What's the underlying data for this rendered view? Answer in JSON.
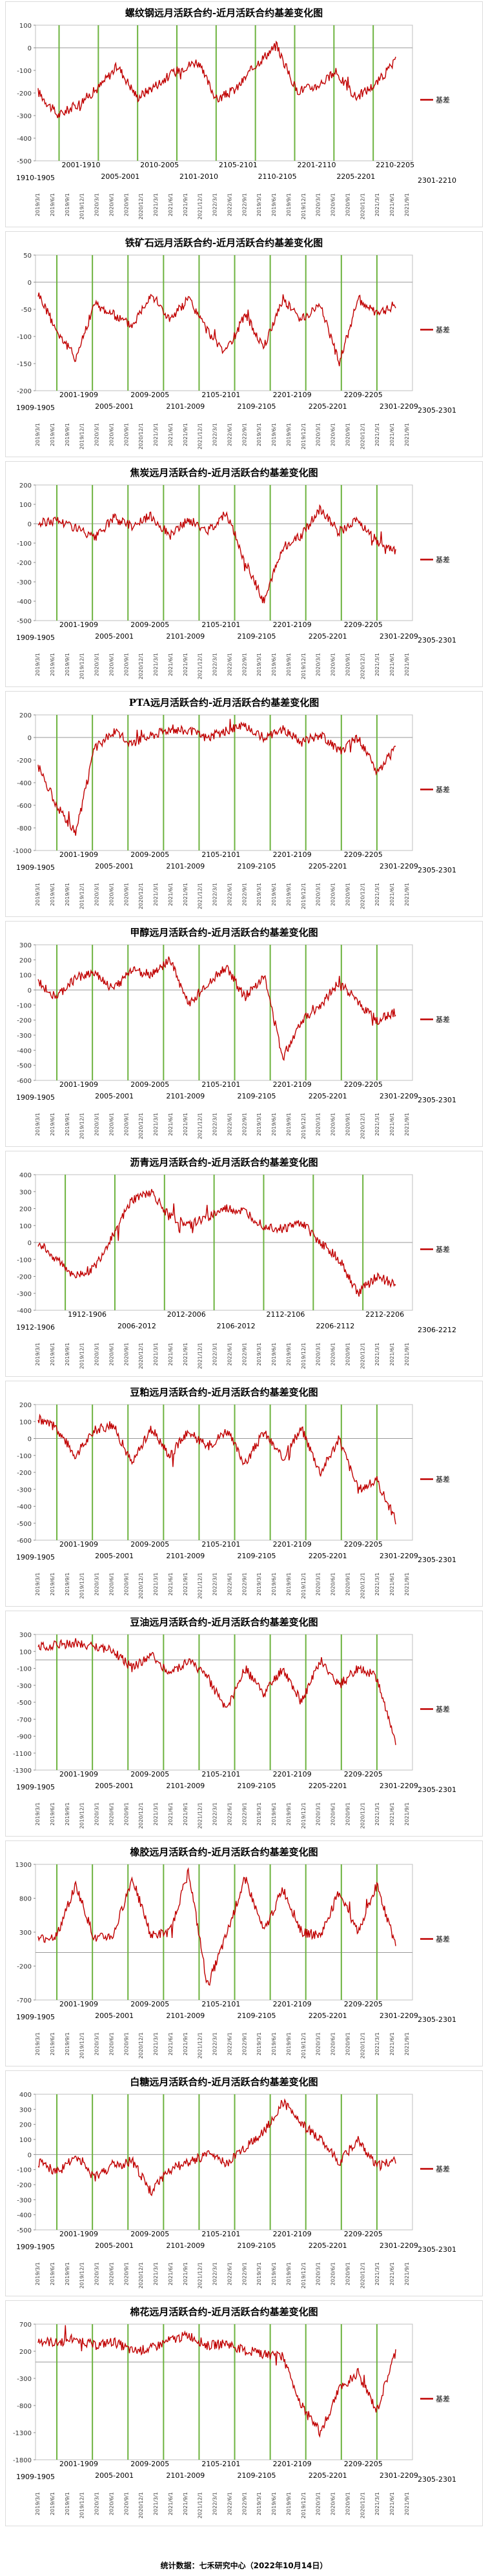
{
  "footer": "统计数据：七禾研究中心（2022年10月14日）",
  "legend_label": "基差",
  "line_color": "#c00000",
  "marker_color": "#6db33f",
  "chart_data": [
    {
      "type": "line",
      "title": "螺纹钢远月活跃合约-近月活跃合约基差变化图",
      "series": [
        {
          "name": "基差"
        }
      ],
      "yticks": [
        100,
        0,
        -100,
        -200,
        -300,
        -400,
        -500
      ],
      "ylim": [
        -500,
        100
      ],
      "first_contract": "1910-1905",
      "last_contract": "2301-2210",
      "contracts": [
        "2001-1910",
        "2005-2001",
        "2010-2005",
        "2101-2010",
        "2105-2101",
        "2110-2105",
        "2201-2110",
        "2205-2201",
        "2210-2205"
      ],
      "anchors": [
        -195,
        -300,
        -250,
        -180,
        -80,
        -220,
        -160,
        -100,
        -60,
        -230,
        -180,
        -70,
        10,
        -190,
        -170,
        -110,
        -220,
        -160,
        -60
      ]
    },
    {
      "type": "line",
      "title": "铁矿石远月活跃合约-近月活跃合约基差变化图",
      "series": [
        {
          "name": "基差"
        }
      ],
      "yticks": [
        50,
        0,
        -50,
        -100,
        -150,
        -200
      ],
      "ylim": [
        -200,
        50
      ],
      "first_contract": "1909-1905",
      "last_contract": "2305-2301",
      "contracts": [
        "2001-1909",
        "2005-2001",
        "2009-2005",
        "2101-2009",
        "2105-2101",
        "2109-2105",
        "2201-2109",
        "2205-2201",
        "2209-2205",
        "2301-2209"
      ],
      "anchors": [
        -20,
        -90,
        -140,
        -40,
        -60,
        -80,
        -20,
        -70,
        -30,
        -90,
        -130,
        -60,
        -120,
        -30,
        -70,
        -40,
        -150,
        -30,
        -60,
        -40
      ]
    },
    {
      "type": "line",
      "title": "焦炭远月活跃合约-近月活跃合约基差变化图",
      "series": [
        {
          "name": "基差"
        }
      ],
      "yticks": [
        200,
        100,
        0,
        -100,
        -200,
        -300,
        -400,
        -500
      ],
      "ylim": [
        -500,
        200
      ],
      "first_contract": "1909-1905",
      "last_contract": "2305-2301",
      "contracts": [
        "2001-1909",
        "2005-2001",
        "2009-2005",
        "2101-2009",
        "2105-2101",
        "2109-2105",
        "2201-2109",
        "2205-2201",
        "2209-2205",
        "2301-2209"
      ],
      "anchors": [
        0,
        20,
        -20,
        -80,
        30,
        -10,
        40,
        -60,
        20,
        -40,
        60,
        -200,
        -400,
        -120,
        -60,
        80,
        -40,
        20,
        -100,
        -140
      ]
    },
    {
      "type": "line",
      "title": "PTA远月活跃合约-近月活跃合约基差变化图",
      "series": [
        {
          "name": "基差"
        }
      ],
      "yticks": [
        200,
        0,
        -200,
        -400,
        -600,
        -800,
        -1000
      ],
      "ylim": [
        -1000,
        200
      ],
      "first_contract": "1909-1905",
      "last_contract": "2305-2301",
      "contracts": [
        "2001-1909",
        "2005-2001",
        "2009-2005",
        "2101-2009",
        "2105-2101",
        "2109-2105",
        "2201-2109",
        "2205-2201",
        "2209-2205",
        "2301-2209"
      ],
      "anchors": [
        -250,
        -600,
        -850,
        -100,
        50,
        -50,
        20,
        80,
        60,
        0,
        60,
        100,
        0,
        80,
        -40,
        20,
        -120,
        0,
        -300,
        -100
      ]
    },
    {
      "type": "line",
      "title": "甲醇远月活跃合约-近月活跃合约基差变化图",
      "series": [
        {
          "name": "基差"
        }
      ],
      "yticks": [
        300,
        200,
        100,
        0,
        -100,
        -200,
        -300,
        -400,
        -500,
        -600
      ],
      "ylim": [
        -600,
        300
      ],
      "first_contract": "1909-1905",
      "last_contract": "2305-2301",
      "contracts": [
        "2001-1909",
        "2005-2001",
        "2009-2005",
        "2101-2009",
        "2105-2101",
        "2109-2105",
        "2201-2109",
        "2205-2201",
        "2209-2205",
        "2301-2209"
      ],
      "anchors": [
        50,
        -50,
        80,
        120,
        0,
        140,
        100,
        200,
        -100,
        50,
        150,
        -50,
        100,
        -450,
        -200,
        -100,
        50,
        -80,
        -200,
        -150
      ]
    },
    {
      "type": "line",
      "title": "沥青远月活跃合约-近月活跃合约基差变化图",
      "series": [
        {
          "name": "基差"
        }
      ],
      "yticks": [
        400,
        300,
        200,
        100,
        0,
        -100,
        -200,
        -300,
        -400
      ],
      "ylim": [
        -400,
        400
      ],
      "first_contract": "1912-1906",
      "last_contract": "2306-2212",
      "contracts": [
        "1912-1906",
        "2006-2012",
        "2012-2006",
        "2106-2012",
        "2112-2106",
        "2206-2112",
        "2212-2206"
      ],
      "anchors": [
        0,
        -100,
        -200,
        -150,
        50,
        250,
        300,
        150,
        100,
        150,
        200,
        180,
        100,
        80,
        120,
        0,
        -100,
        -300,
        -200,
        -250
      ]
    },
    {
      "type": "line",
      "title": "豆粕远月活跃合约-近月活跃合约基差变化图",
      "series": [
        {
          "name": "基差"
        }
      ],
      "yticks": [
        200,
        100,
        0,
        -100,
        -200,
        -300,
        -400,
        -500,
        -600
      ],
      "ylim": [
        -600,
        200
      ],
      "first_contract": "1909-1905",
      "last_contract": "2305-2301",
      "contracts": [
        "2001-1909",
        "2005-2001",
        "2009-2005",
        "2101-2009",
        "2105-2101",
        "2109-2105",
        "2201-2109",
        "2205-2201",
        "2209-2205",
        "2301-2209"
      ],
      "anchors": [
        120,
        60,
        -100,
        50,
        80,
        -150,
        60,
        -100,
        40,
        -50,
        50,
        -150,
        40,
        -120,
        60,
        -200,
        0,
        -300,
        -250,
        -480
      ]
    },
    {
      "type": "line",
      "title": "豆油远月活跃合约-近月活跃合约基差变化图",
      "series": [
        {
          "name": "基差"
        }
      ],
      "yticks": [
        300,
        100,
        -100,
        -300,
        -500,
        -700,
        -900,
        -1100,
        -1300
      ],
      "ylim": [
        -1300,
        300
      ],
      "first_contract": "1909-1905",
      "last_contract": "2305-2301",
      "contracts": [
        "2001-1909",
        "2005-2001",
        "2009-2005",
        "2101-2009",
        "2105-2101",
        "2109-2105",
        "2201-2109",
        "2205-2201",
        "2209-2205",
        "2301-2209"
      ],
      "anchors": [
        150,
        180,
        200,
        160,
        100,
        -100,
        50,
        -150,
        0,
        -200,
        -600,
        -100,
        -400,
        -100,
        -500,
        0,
        -300,
        -100,
        -200,
        -1000
      ]
    },
    {
      "type": "line",
      "title": "橡胶远月活跃合约-近月活跃合约基差变化图",
      "series": [
        {
          "name": "基差"
        }
      ],
      "yticks": [
        1300,
        800,
        300,
        -200,
        -700
      ],
      "ylim": [
        -700,
        1300
      ],
      "first_contract": "1909-1905",
      "last_contract": "2305-2301",
      "contracts": [
        "2001-1909",
        "2005-2001",
        "2009-2005",
        "2101-2009",
        "2105-2101",
        "2109-2105",
        "2201-2109",
        "2205-2201",
        "2209-2205",
        "2301-2209"
      ],
      "anchors": [
        200,
        250,
        1000,
        200,
        250,
        1100,
        250,
        300,
        1200,
        -500,
        250,
        1100,
        300,
        950,
        300,
        250,
        900,
        300,
        1000,
        100
      ]
    },
    {
      "type": "line",
      "title": "白糖远月活跃合约-近月活跃合约基差变化图",
      "series": [
        {
          "name": "基差"
        }
      ],
      "yticks": [
        400,
        300,
        200,
        100,
        0,
        -100,
        -200,
        -300,
        -400,
        -500
      ],
      "ylim": [
        -500,
        400
      ],
      "first_contract": "1909-1905",
      "last_contract": "2305-2301",
      "contracts": [
        "2001-1909",
        "2005-2001",
        "2009-2005",
        "2101-2009",
        "2105-2101",
        "2109-2105",
        "2201-2109",
        "2205-2201",
        "2209-2205",
        "2301-2209"
      ],
      "anchors": [
        -50,
        -120,
        -20,
        -150,
        -80,
        -40,
        -250,
        -100,
        -50,
        0,
        -60,
        50,
        150,
        350,
        200,
        100,
        -50,
        100,
        -80,
        -30
      ]
    },
    {
      "type": "line",
      "title": "棉花远月活跃合约-近月活跃合约基差变化图",
      "series": [
        {
          "name": "基差"
        }
      ],
      "yticks": [
        700,
        200,
        -300,
        -800,
        -1300,
        -1800
      ],
      "ylim": [
        -1800,
        700
      ],
      "first_contract": "1909-1905",
      "last_contract": "2305-2301",
      "contracts": [
        "2001-1909",
        "2005-2001",
        "2009-2005",
        "2101-2009",
        "2105-2101",
        "2109-2105",
        "2201-2109",
        "2205-2201",
        "2209-2205",
        "2301-2209"
      ],
      "anchors": [
        400,
        350,
        450,
        300,
        380,
        200,
        250,
        400,
        500,
        300,
        350,
        200,
        150,
        100,
        -800,
        -1300,
        -500,
        -200,
        -900,
        200
      ]
    }
  ]
}
